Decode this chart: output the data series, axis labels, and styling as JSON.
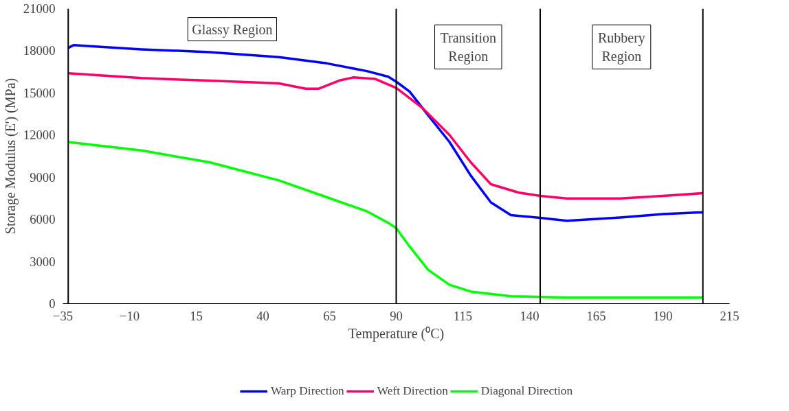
{
  "chart_data": {
    "type": "line",
    "xlabel": "Temperature (⁰C)",
    "ylabel": "Storage Modulus (E') (MPa)",
    "xlim": [
      -35,
      215
    ],
    "xticks": [
      -35,
      -10,
      15,
      40,
      65,
      90,
      115,
      140,
      165,
      190,
      215
    ],
    "ylim": [
      0,
      21000
    ],
    "yticks": [
      0,
      3000,
      6000,
      9000,
      12000,
      15000,
      18000,
      21000
    ],
    "grid": false,
    "legend": "bottom",
    "marker": "none",
    "line_style": "solid",
    "series": [
      {
        "name": "Warp Direction",
        "color": "#0000ff",
        "x": [
          -33,
          -31,
          -5.5,
          20,
          46,
          64,
          79,
          87,
          90,
          95,
          102,
          110,
          118,
          125.5,
          133,
          144,
          154,
          174,
          190,
          205
        ],
        "values": [
          18200,
          18400,
          18100,
          17900,
          17550,
          17100,
          16550,
          16150,
          15800,
          15100,
          13400,
          11500,
          9100,
          7200,
          6300,
          6100,
          5900,
          6130,
          6370,
          6500
        ]
      },
      {
        "name": "Weft Direction",
        "color": "#ff0066",
        "x": [
          -33,
          -5.5,
          20,
          46,
          56,
          61,
          69,
          74,
          82,
          90,
          100,
          110,
          118,
          125.5,
          136,
          144,
          154,
          174,
          190,
          205
        ],
        "values": [
          16400,
          16050,
          15870,
          15680,
          15300,
          15300,
          15900,
          16100,
          16000,
          15350,
          13900,
          12000,
          10050,
          8500,
          7900,
          7670,
          7480,
          7480,
          7670,
          7860
        ]
      },
      {
        "name": "Diagonal Direction",
        "color": "#00ff00",
        "x": [
          -33,
          -5.5,
          20,
          46,
          64,
          79,
          87,
          90,
          95,
          102,
          110,
          118,
          133,
          154,
          205
        ],
        "values": [
          11500,
          10900,
          10060,
          8770,
          7570,
          6570,
          5750,
          5370,
          4070,
          2400,
          1340,
          860,
          530,
          430,
          430
        ]
      }
    ],
    "ref_lines": [
      {
        "axis": "x",
        "value": -33,
        "color": "#000000"
      },
      {
        "axis": "x",
        "value": 90,
        "color": "#000000"
      },
      {
        "axis": "x",
        "value": 144,
        "color": "#000000"
      },
      {
        "axis": "x",
        "value": 205,
        "color": "#000000"
      }
    ],
    "annotations": [
      "Glassy Region",
      "Transition Region",
      "Rubbery Region"
    ]
  }
}
